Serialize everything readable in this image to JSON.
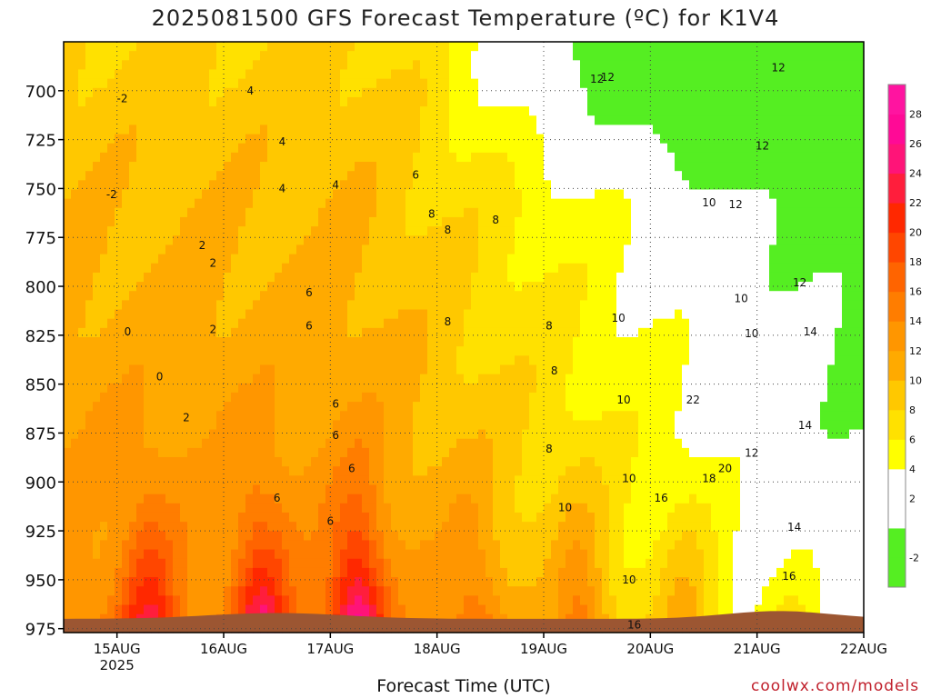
{
  "chart_data": {
    "type": "heatmap",
    "title": "2025081500 GFS Forecast Temperature (ºC) for K1V4",
    "xlabel": "Forecast Time (UTC)",
    "ylabel": "",
    "credit": "coolwx.com/models",
    "x_start_year": "2025",
    "x_ticks": [
      "15AUG",
      "16AUG",
      "17AUG",
      "18AUG",
      "19AUG",
      "20AUG",
      "21AUG",
      "22AUG"
    ],
    "xlim_days": [
      0,
      7.5
    ],
    "y_ticks": [
      700,
      725,
      750,
      775,
      800,
      825,
      850,
      875,
      900,
      925,
      950,
      975
    ],
    "ylim_hPa": [
      977,
      675
    ],
    "colorbar": {
      "levels": [
        -4,
        -2,
        0,
        2,
        4,
        6,
        8,
        10,
        12,
        14,
        16,
        18,
        20,
        22,
        24,
        26,
        28,
        30
      ],
      "tick_labels": [
        "-2",
        "2",
        "4",
        "6",
        "8",
        "10",
        "12",
        "14",
        "16",
        "18",
        "20",
        "22",
        "24",
        "26",
        "28"
      ],
      "colors": [
        "#55ee22",
        "#55ee22",
        "#ffffff",
        "#ffffff",
        "#ffff00",
        "#ffe100",
        "#ffc800",
        "#ffaa00",
        "#ff9600",
        "#ff7d00",
        "#ff6400",
        "#ff4600",
        "#ff2800",
        "#ff1e3c",
        "#ff1478",
        "#ff0a96",
        "#ff14a0"
      ]
    },
    "contour_labels": [
      "-2",
      "-2",
      "0",
      "0",
      "2",
      "2",
      "2",
      "2",
      "4",
      "4",
      "4",
      "4",
      "6",
      "6",
      "6",
      "6",
      "6",
      "6",
      "6",
      "6",
      "8",
      "8",
      "8",
      "8",
      "8",
      "8",
      "8",
      "10",
      "10",
      "10",
      "10",
      "10",
      "10",
      "10",
      "10",
      "12",
      "12",
      "12",
      "12",
      "12",
      "12",
      "12",
      "14",
      "14",
      "14",
      "16",
      "16",
      "16",
      "18",
      "20",
      "22"
    ],
    "ground_color": "#9c5632",
    "grid": true
  }
}
